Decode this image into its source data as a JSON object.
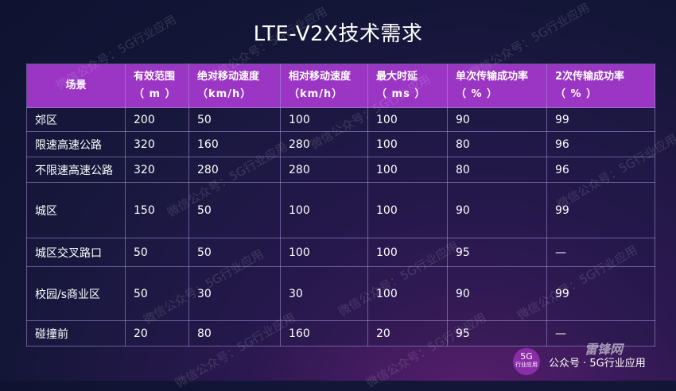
{
  "title": "LTE-V2X技术需求",
  "headers": [
    {
      "name": "场景",
      "unit": ""
    },
    {
      "name": "有效范围",
      "unit": "（ m ）"
    },
    {
      "name": "绝对移动速度",
      "unit": "（km/h）"
    },
    {
      "name": "相对移动速度",
      "unit": "（km/h）"
    },
    {
      "name": "最大时延",
      "unit": "（ ms ）"
    },
    {
      "name": "单次传输成功率",
      "unit": "（ % ）"
    },
    {
      "name": "2次传输成功率",
      "unit": "（ % ）"
    }
  ],
  "rows": [
    [
      "郊区",
      "200",
      "50",
      "100",
      "100",
      "90",
      "99"
    ],
    [
      "限速高速公路",
      "320",
      "160",
      "280",
      "100",
      "80",
      "96"
    ],
    [
      "不限速高速公路",
      "320",
      "280",
      "280",
      "100",
      "80",
      "96"
    ],
    [
      "城区",
      "150",
      "50",
      "100",
      "100",
      "90",
      "99"
    ],
    [
      "城区交叉路口",
      "50",
      "50",
      "100",
      "100",
      "95",
      "—"
    ],
    [
      "校园/s商业区",
      "50",
      "30",
      "30",
      "100",
      "90",
      "99"
    ],
    [
      "碰撞前",
      "20",
      "80",
      "160",
      "20",
      "95",
      "—"
    ]
  ],
  "watermark_text": "微信公众号：5G行业应用",
  "footer": {
    "badge_main": "5G",
    "badge_sub": "行业应用",
    "account": "公众号 · 5G行业应用",
    "brand": "雷锋网"
  }
}
